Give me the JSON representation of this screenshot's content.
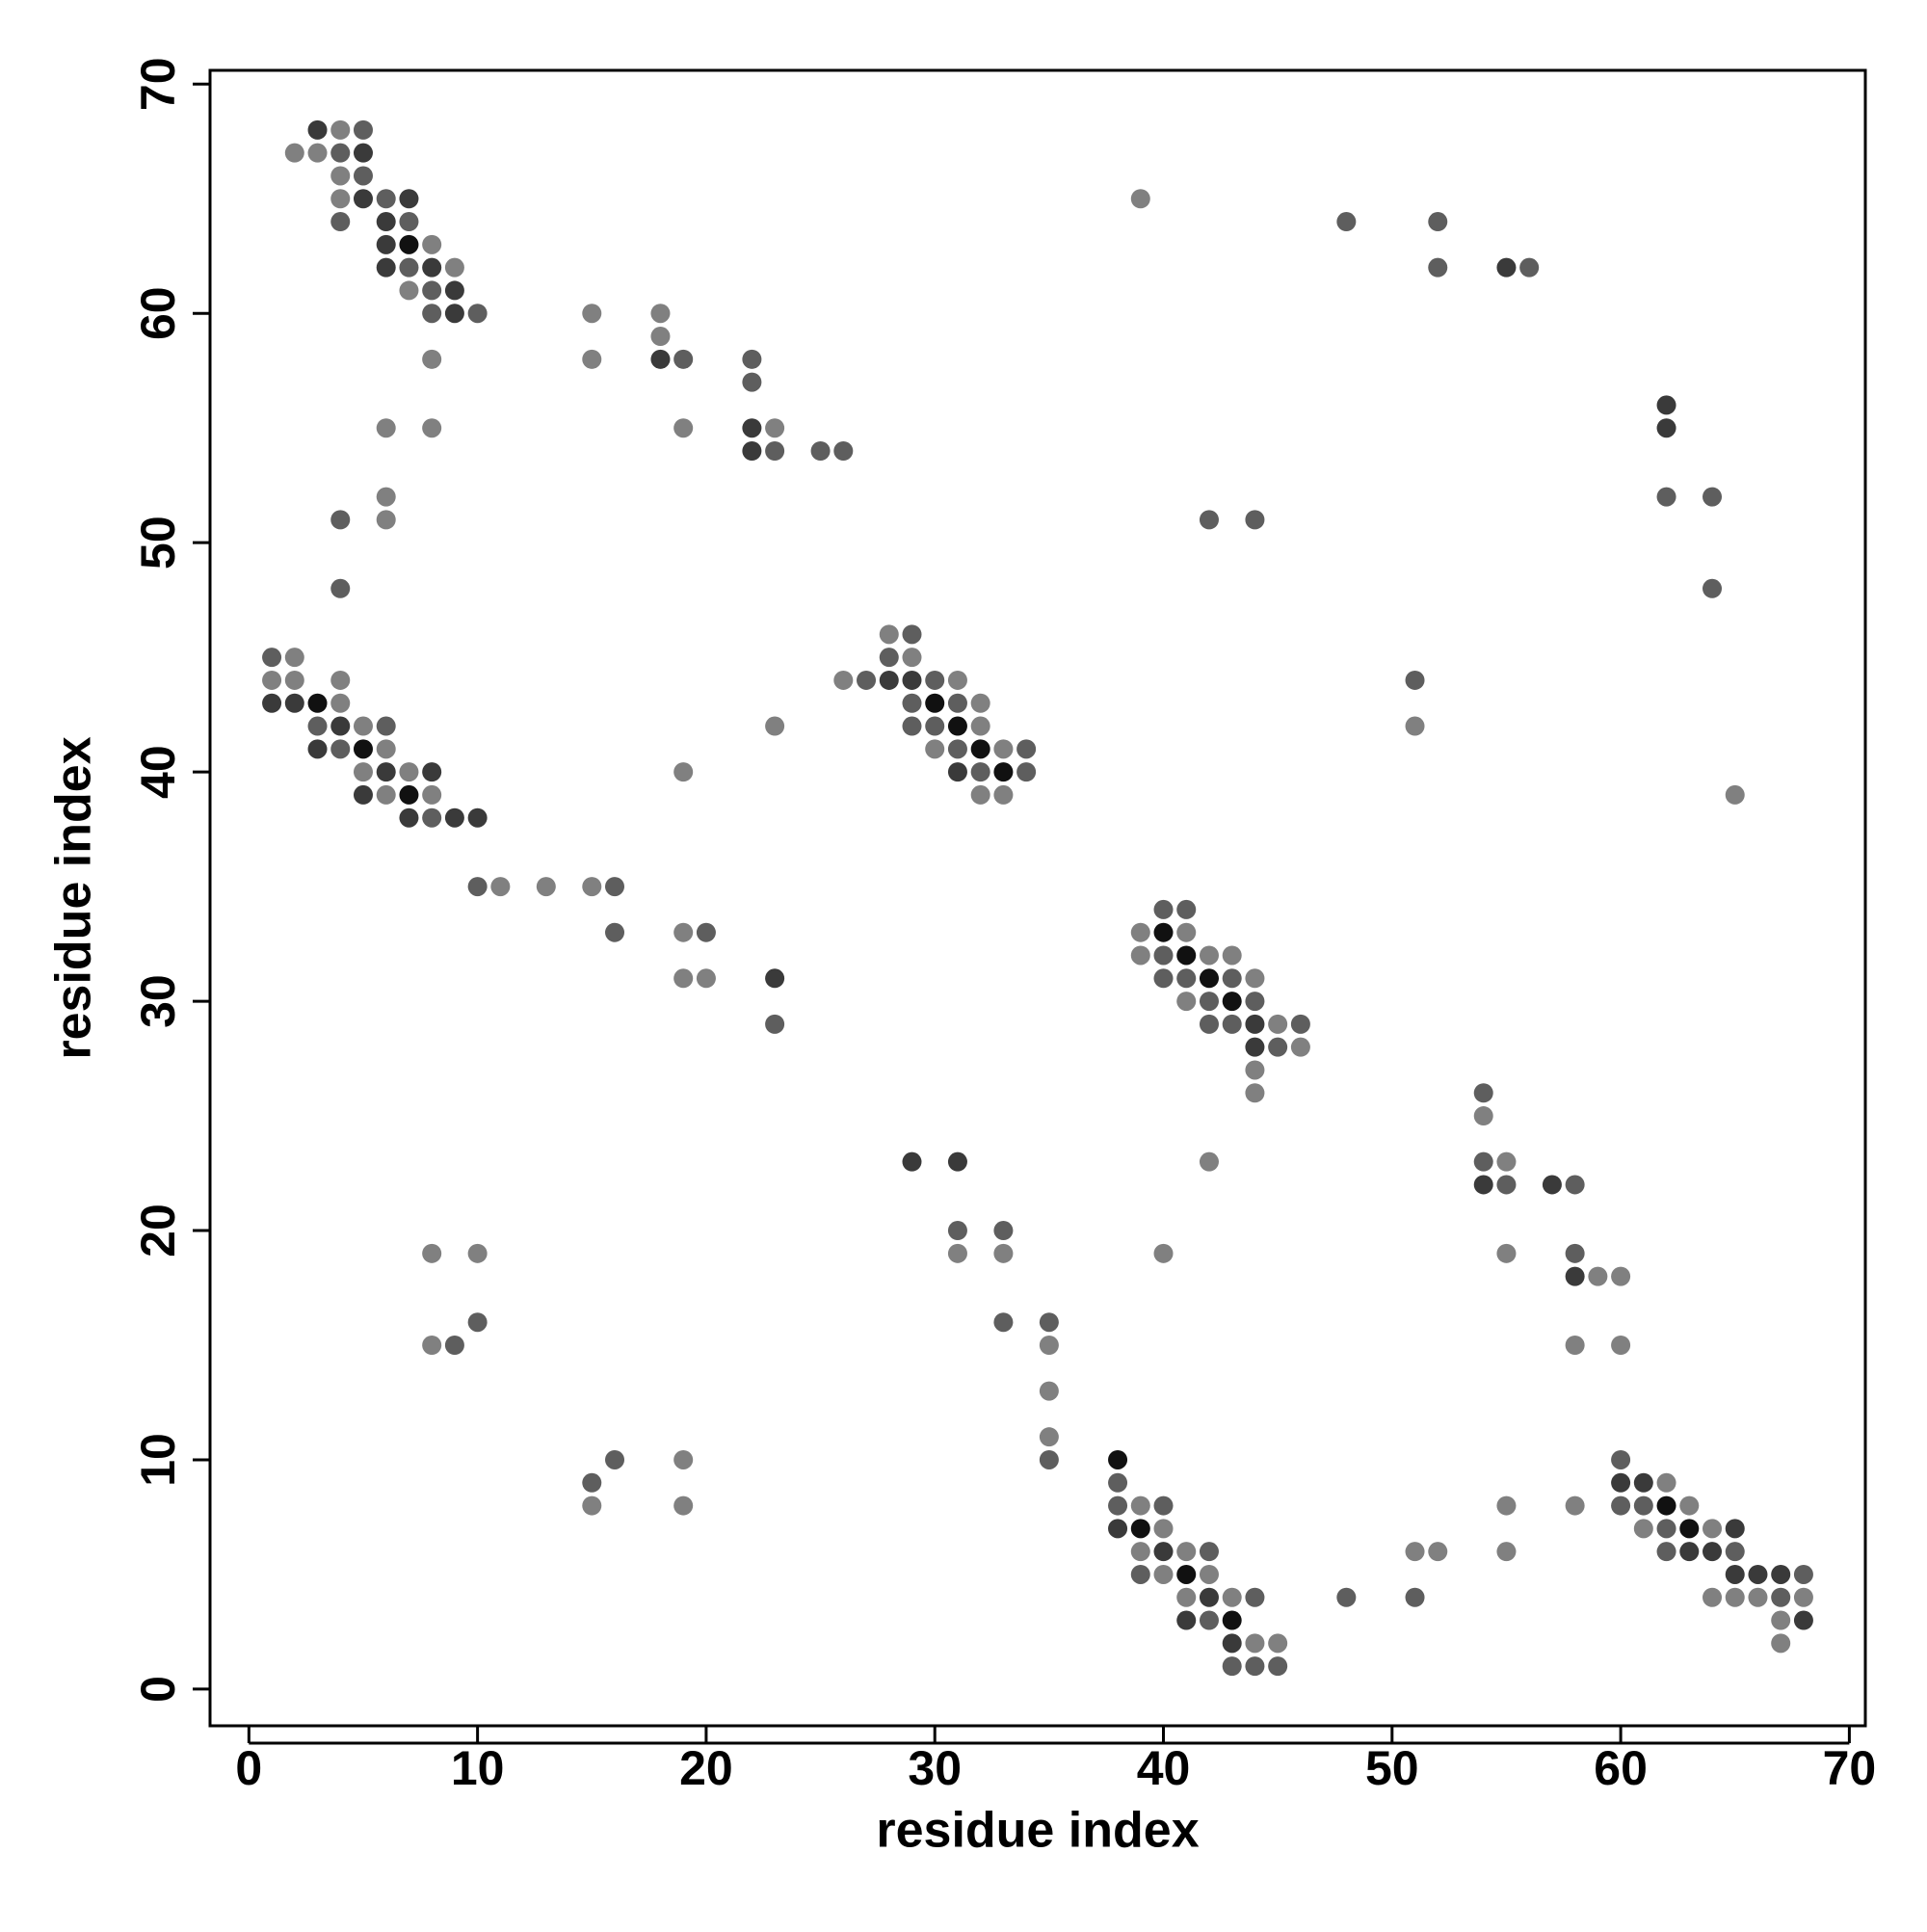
{
  "chart_data": {
    "type": "scatter",
    "x_label": "residue index",
    "y_label": "residue index",
    "xlim": [
      -1.7,
      70.7
    ],
    "ylim": [
      -1.6,
      70.6
    ],
    "xticks": [
      0,
      10,
      20,
      30,
      40,
      50,
      60,
      70
    ],
    "yticks": [
      0,
      10,
      20,
      30,
      40,
      50,
      60,
      70
    ],
    "series": [
      {
        "color": "#808080",
        "x": [
          4,
          2,
          3,
          4,
          4,
          39,
          8,
          9,
          7,
          15,
          18,
          18,
          8,
          15,
          6,
          8,
          19,
          23,
          6,
          6,
          28,
          2,
          29,
          1,
          2,
          4,
          26,
          31,
          4,
          32,
          5,
          23,
          32,
          51,
          6,
          30,
          33,
          5,
          7,
          19,
          6,
          8,
          32,
          33,
          65,
          11,
          13,
          15,
          19,
          39,
          41,
          39,
          42,
          43,
          19,
          20,
          44,
          41,
          45,
          46,
          44,
          44,
          54,
          42,
          55,
          8,
          10,
          31,
          33,
          40,
          55,
          59,
          60,
          8,
          35,
          58,
          60,
          35,
          35,
          19,
          62,
          15,
          19,
          39,
          55,
          58,
          63,
          40,
          61,
          64,
          39,
          41,
          51,
          52,
          55,
          40,
          42,
          41,
          43,
          64,
          65,
          66,
          68,
          67,
          44,
          45,
          67
        ],
        "y": [
          68,
          67,
          67,
          66,
          65,
          65,
          63,
          62,
          61,
          60,
          60,
          59,
          58,
          58,
          55,
          55,
          55,
          55,
          52,
          51,
          46,
          45,
          45,
          44,
          44,
          44,
          44,
          44,
          43,
          43,
          42,
          42,
          42,
          42,
          41,
          41,
          41,
          40,
          40,
          40,
          39,
          39,
          39,
          39,
          39,
          35,
          35,
          35,
          33,
          33,
          33,
          32,
          32,
          32,
          31,
          31,
          31,
          30,
          29,
          28,
          27,
          26,
          25,
          23,
          23,
          19,
          19,
          19,
          19,
          19,
          19,
          18,
          18,
          15,
          15,
          15,
          15,
          13,
          11,
          10,
          9,
          8,
          8,
          8,
          8,
          8,
          8,
          7,
          7,
          7,
          6,
          6,
          6,
          6,
          6,
          5,
          5,
          4,
          4,
          4,
          4,
          4,
          4,
          3,
          2,
          2,
          2
        ]
      },
      {
        "color": "#5e5e5e",
        "x": [
          5,
          4,
          5,
          6,
          4,
          7,
          48,
          52,
          7,
          52,
          56,
          8,
          8,
          10,
          19,
          22,
          22,
          23,
          25,
          26,
          62,
          64,
          4,
          42,
          44,
          4,
          64,
          29,
          1,
          28,
          27,
          30,
          51,
          29,
          31,
          3,
          6,
          29,
          30,
          4,
          31,
          34,
          32,
          34,
          8,
          10,
          16,
          40,
          41,
          16,
          20,
          40,
          40,
          41,
          43,
          42,
          44,
          23,
          42,
          43,
          46,
          45,
          54,
          54,
          55,
          58,
          31,
          33,
          58,
          10,
          33,
          35,
          9,
          16,
          35,
          60,
          15,
          38,
          38,
          40,
          60,
          61,
          62,
          42,
          62,
          65,
          39,
          68,
          44,
          48,
          51,
          67,
          42,
          43,
          44,
          45
        ],
        "y": [
          68,
          67,
          66,
          65,
          64,
          64,
          64,
          64,
          62,
          62,
          62,
          61,
          60,
          60,
          58,
          58,
          57,
          54,
          54,
          54,
          52,
          52,
          51,
          51,
          51,
          48,
          48,
          46,
          45,
          45,
          44,
          44,
          44,
          43,
          43,
          42,
          42,
          42,
          42,
          41,
          41,
          41,
          40,
          40,
          38,
          35,
          35,
          34,
          34,
          33,
          33,
          32,
          31,
          31,
          31,
          30,
          30,
          29,
          29,
          29,
          29,
          28,
          26,
          23,
          22,
          22,
          20,
          20,
          19,
          16,
          16,
          16,
          15,
          10,
          10,
          10,
          9,
          9,
          8,
          8,
          8,
          8,
          7,
          6,
          6,
          6,
          5,
          5,
          4,
          4,
          4,
          4,
          3,
          1,
          1,
          1
        ]
      },
      {
        "color": "#3a3a3a",
        "x": [
          3,
          5,
          5,
          7,
          6,
          6,
          6,
          8,
          9,
          9,
          18,
          62,
          22,
          62,
          22,
          28,
          29,
          1,
          2,
          4,
          3,
          6,
          8,
          31,
          5,
          7,
          9,
          10,
          23,
          44,
          44,
          29,
          31,
          54,
          57,
          58,
          60,
          61,
          38,
          65,
          40,
          63,
          64,
          65,
          66,
          67,
          42,
          41,
          68,
          43,
          55
        ],
        "y": [
          68,
          67,
          65,
          65,
          64,
          63,
          62,
          62,
          61,
          60,
          58,
          56,
          55,
          55,
          54,
          44,
          44,
          43,
          43,
          42,
          41,
          40,
          40,
          40,
          39,
          38,
          38,
          38,
          31,
          29,
          28,
          23,
          23,
          22,
          22,
          18,
          9,
          9,
          7,
          7,
          6,
          6,
          6,
          5,
          5,
          5,
          4,
          3,
          3,
          2,
          62
        ]
      },
      {
        "color": "#111111",
        "x": [
          7,
          3,
          30,
          31,
          5,
          32,
          33,
          7,
          40,
          41,
          42,
          43,
          38,
          62,
          39,
          63,
          41,
          43
        ],
        "y": [
          63,
          43,
          43,
          42,
          41,
          41,
          40,
          39,
          33,
          32,
          31,
          30,
          10,
          8,
          7,
          7,
          5,
          3
        ]
      }
    ]
  }
}
